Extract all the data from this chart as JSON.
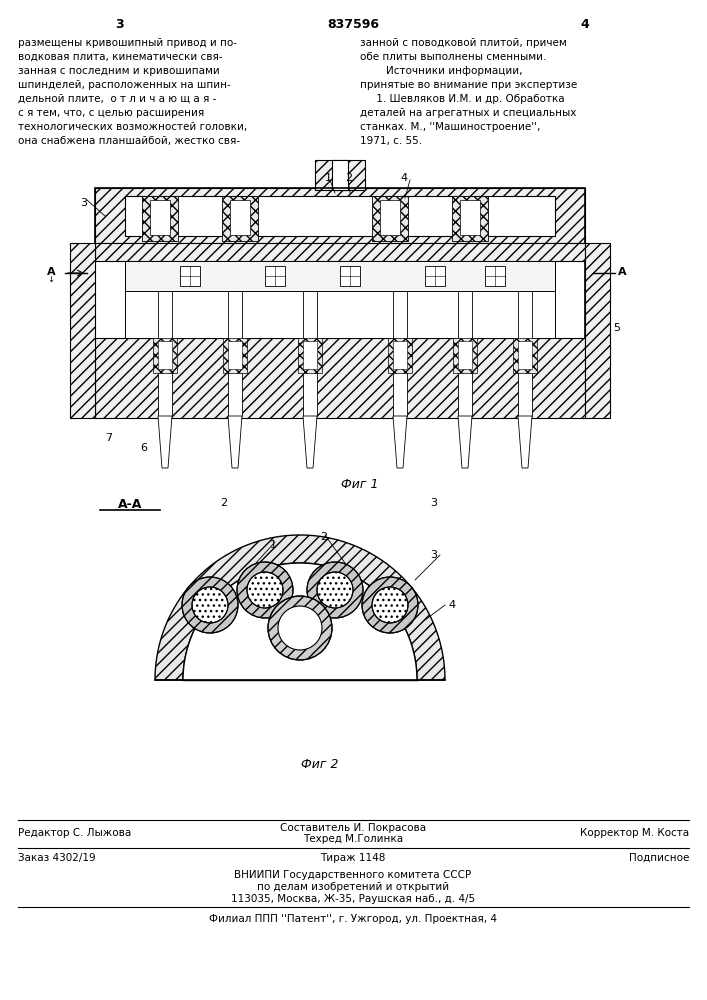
{
  "page_number_left": "3",
  "page_number_center": "837596",
  "page_number_right": "4",
  "text_left_col": [
    "размещены кривошипный привод и по-",
    "водковая плита, кинематически свя-",
    "занная с последним и кривошипами",
    "шпинделей, расположенных на шпин-",
    "дельной плите,  о т л и ч а ю щ а я -",
    "с я тем, что, с целью расширения",
    "технологических возможностей головки,",
    "она снабжена планшайбой, жестко свя-"
  ],
  "text_right_col": [
    "занной с поводковой плитой, причем",
    "обе плиты выполнены сменными.",
    "        Источники информации,",
    "принятые во внимание при экспертизе",
    "     1. Шевляков И.М. и др. Обработка",
    "деталей на агрегатных и специальных",
    "станках. М., ''Машиностроение'',",
    "1971, с. 55."
  ],
  "fig1_caption": "Фиг 1",
  "fig2_caption": "Фиг 2",
  "section_label": "А-А",
  "bottom_line1_left": "Редактор С. Лыжова",
  "bottom_line1_center": "Составитель И. Покрасова",
  "bottom_line1_center2": "Техред М.Голинка",
  "bottom_line1_right": "Корректор М. Коста",
  "bottom_line2_left": "Заказ 4302/19",
  "bottom_line2_center": "Тираж 1148",
  "bottom_line2_right": "Подписное",
  "bottom_line3": "ВНИИПИ Государственного комитета СССР",
  "bottom_line4": "по делам изобретений и открытий",
  "bottom_line5": "113035, Москва, Ж-35, Раушская наб., д. 4/5",
  "bottom_final": "Филиал ППП ''Патент'', г. Ужгород, ул. Проектная, 4",
  "bg_color": "#ffffff",
  "text_color": "#000000",
  "hatch_color": "#333333",
  "line_color": "#000000"
}
